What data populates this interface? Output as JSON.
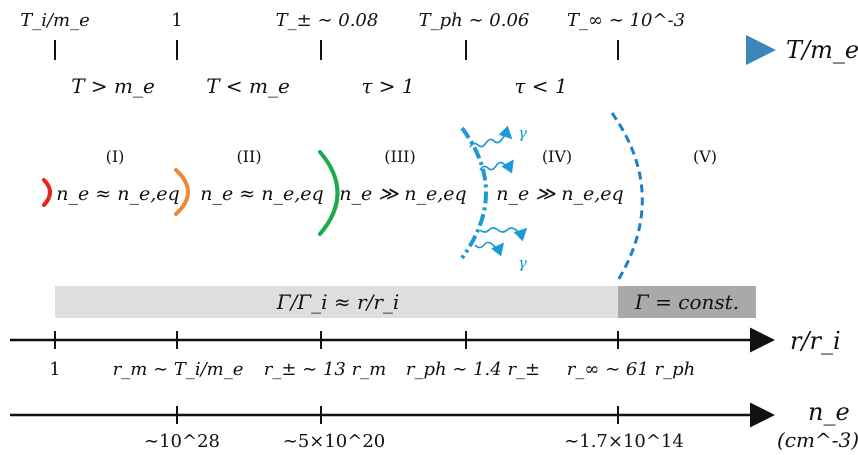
{
  "colors": {
    "temp_gradient": [
      "#e8231b",
      "#f08a1f",
      "#f2c919",
      "#8cc63f",
      "#1fa45a",
      "#1ba3d6",
      "#3d86b8"
    ],
    "fireball_red": "#e8231b",
    "fireball_orange": "#f0883a",
    "fireball_green": "#1faa4a",
    "photosphere_blue": "#1b9ad6",
    "shell_blue": "#1b7ec9",
    "band_light": "#dedede",
    "band_dark": "#a9a9a9"
  },
  "temperature_axis": {
    "label": "T/m_e",
    "ticks": [
      "T_i/m_e",
      "1",
      "T_± ∼ 0.08",
      "T_ph ∼ 0.06",
      "T_∞ ∼ 10^-3"
    ]
  },
  "regime_conditions": [
    "T > m_e",
    "T < m_e",
    "τ > 1",
    "τ < 1"
  ],
  "phases": [
    {
      "numeral": "(I)",
      "relation": "n_e ≈ n_e,eq"
    },
    {
      "numeral": "(II)",
      "relation": "n_e ≈ n_e,eq"
    },
    {
      "numeral": "(III)",
      "relation": "n_e ≫ n_e,eq"
    },
    {
      "numeral": "(IV)",
      "relation": "n_e ≫ n_e,eq"
    },
    {
      "numeral": "(V)",
      "relation": ""
    }
  ],
  "photon_label": "γ",
  "lorentz_band": {
    "accelerating": "Γ/Γ_i ≈ r/r_i",
    "coasting": "Γ = const."
  },
  "radius_axis": {
    "label": "r/r_i",
    "ticks": [
      "1",
      "r_m ∼ T_i/m_e",
      "r_± ∼ 13 r_m",
      "r_ph ∼ 1.4 r_±",
      "r_∞ ∼ 61 r_ph"
    ]
  },
  "density_axis": {
    "label": "n_e",
    "unit": "(cm^-3)",
    "ticks": [
      "∼10^28",
      "∼5×10^20",
      "∼1.7×10^14"
    ]
  }
}
